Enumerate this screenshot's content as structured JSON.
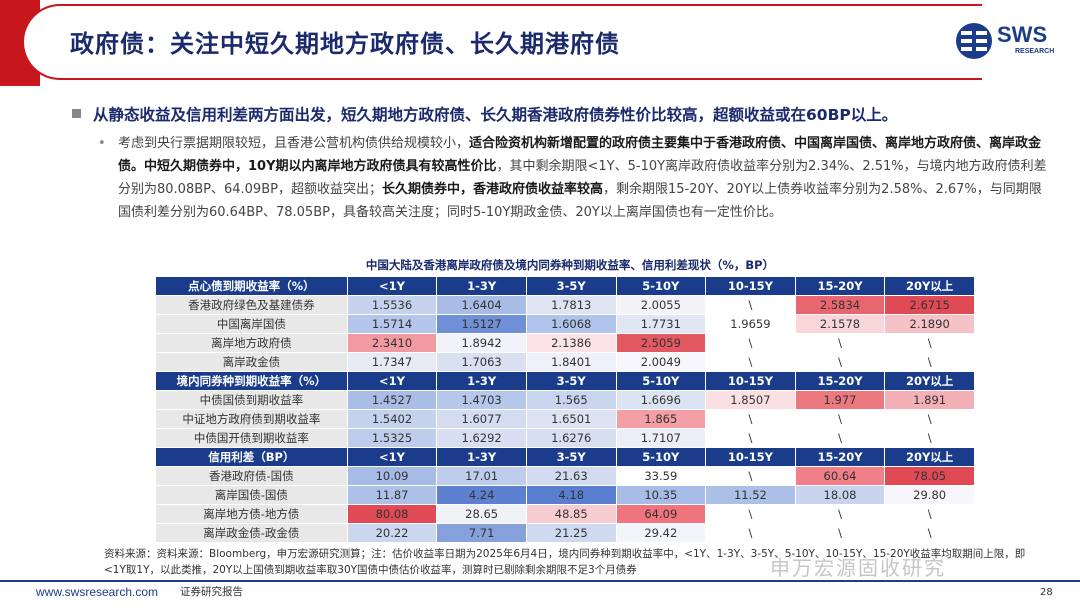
{
  "header": {
    "title": "政府债：关注中短久期地方政府债、长久期港府债",
    "logo_text": "SWS",
    "logo_sub": "RESEARCH"
  },
  "bullet_main": "从静态收益及信用利差两方面出发，短久期地方政府债、长久期香港政府债券性价比较高，超额收益或在60BP以上。",
  "paragraph": [
    {
      "text": "考虑到央行票据期限较短，且香港公营机构债供给规模较小，",
      "bold": false
    },
    {
      "text": "适合险资机构新增配置的政府债主要集中于香港政府债、中国离岸国债、离岸地方政府债、离岸政金债。中短久期债券中，10Y期以内离岸地方政府债具有较高性价比",
      "bold": true
    },
    {
      "text": "，其中剩余期限<1Y、5-10Y离岸政府债收益率分别为2.34%、2.51%，与境内地方政府债利差分别为80.08BP、64.09BP，超额收益突出；",
      "bold": false
    },
    {
      "text": "长久期债券中，香港政府债收益率较高",
      "bold": true
    },
    {
      "text": "，剩余期限15-20Y、20Y以上债券收益率分别为2.58%、2.67%，与同期限国债利差分别为60.64BP、78.05BP，具备较高关注度；同时5-10Y期政金债、20Y以上离岸国债也有一定性价比。",
      "bold": false
    }
  ],
  "table_title": "中国大陆及香港离岸政府债及境内同券种到期收益率、信用利差现状（%，BP）",
  "table": {
    "sections": [
      {
        "header": [
          "点心债到期收益率（%）",
          "<1Y",
          "1-3Y",
          "3-5Y",
          "5-10Y",
          "10-15Y",
          "15-20Y",
          "20Y以上"
        ],
        "rows": [
          {
            "label": "香港政府绿色及基建债券",
            "cells": [
              "1.5536",
              "1.6404",
              "1.7813",
              "2.0055",
              "\\",
              "2.5834",
              "2.6715"
            ],
            "colors": [
              "#c7d3ee",
              "#a8bce6",
              "#dfe4f2",
              "#f4f4f8",
              "#ffffff",
              "#e86670",
              "#e04a55"
            ]
          },
          {
            "label": "中国离岸国债",
            "cells": [
              "1.5714",
              "1.5127",
              "1.6068",
              "1.7731",
              "1.9659",
              "2.1578",
              "2.1890"
            ],
            "colors": [
              "#b4c6ea",
              "#6f8fd6",
              "#b0c3ea",
              "#e0e6f4",
              "#ffffff",
              "#f8d6da",
              "#f5c2c7"
            ]
          },
          {
            "label": "离岸地方政府债",
            "cells": [
              "2.3410",
              "1.8942",
              "2.1386",
              "2.5059"
            ],
            "colors": [
              "#f29aa2",
              "#f1f3f9",
              "#fbe3e6",
              "#e45862"
            ]
          },
          {
            "label": "离岸政金债",
            "cells": [
              "1.7347",
              "1.7063",
              "1.8401",
              "2.0049"
            ],
            "colors": [
              "#e6ebf6",
              "#d9e0f2",
              "#edf0f8",
              "#f7f7fb"
            ]
          }
        ],
        "trail": [
          "\\",
          "\\",
          "\\"
        ]
      },
      {
        "header": [
          "境内同券种到期收益率（%）",
          "<1Y",
          "1-3Y",
          "3-5Y",
          "5-10Y",
          "10-15Y",
          "15-20Y",
          "20Y以上"
        ],
        "rows": [
          {
            "label": "中债国债到期收益率",
            "cells": [
              "1.4527",
              "1.4703",
              "1.565",
              "1.6696",
              "1.8507",
              "1.977",
              "1.891"
            ],
            "colors": [
              "#a9bde7",
              "#b5c7ea",
              "#c9d5ef",
              "#dce3f3",
              "#fbe0e3",
              "#ec7880",
              "#f3b0b6"
            ]
          },
          {
            "label": "中证地方政府债到期收益率",
            "cells": [
              "1.5402",
              "1.6077",
              "1.6501",
              "1.865"
            ],
            "colors": [
              "#c5d2ee",
              "#d4dcf1",
              "#dde3f3",
              "#f49ea5"
            ]
          },
          {
            "label": "中债国开债到期收益率",
            "cells": [
              "1.5325",
              "1.6292",
              "1.6276",
              "1.7107"
            ],
            "colors": [
              "#bfcdec",
              "#d8dff2",
              "#d8dff2",
              "#eceff8"
            ]
          }
        ],
        "trail": [
          "\\",
          "\\",
          "\\"
        ]
      },
      {
        "header": [
          "信用利差（BP）",
          "<1Y",
          "1-3Y",
          "3-5Y",
          "5-10Y",
          "10-15Y",
          "15-20Y",
          "20Y以上"
        ],
        "rows": [
          {
            "label": "香港政府债-国债",
            "cells": [
              "10.09",
              "17.01",
              "21.63",
              "33.59",
              "\\",
              "60.64",
              "78.05"
            ],
            "colors": [
              "#a6bbe6",
              "#bfcdec",
              "#d2dbf0",
              "#ffffff",
              "#ffffff",
              "#f07f88",
              "#e04a55"
            ]
          },
          {
            "label": "离岸国债-国债",
            "cells": [
              "11.87",
              "4.24",
              "4.18",
              "10.35",
              "11.52",
              "18.08",
              "29.80"
            ],
            "colors": [
              "#acc0e8",
              "#5d80d0",
              "#5a7ecf",
              "#a7bce6",
              "#abbfe7",
              "#c8d4ee",
              "#f7f7fb"
            ]
          },
          {
            "label": "离岸地方债-地方债",
            "cells": [
              "80.08",
              "28.65",
              "48.85",
              "64.09"
            ],
            "colors": [
              "#e04a55",
              "#f1f2f8",
              "#f8cdd2",
              "#ef747d"
            ]
          },
          {
            "label": "离岸政金债-政金债",
            "cells": [
              "20.22",
              "7.71",
              "21.25",
              "29.42"
            ],
            "colors": [
              "#cbd6ef",
              "#86a0db",
              "#cfd9f0",
              "#f4f5fa"
            ]
          }
        ],
        "trail": [
          "\\",
          "\\",
          "\\"
        ]
      }
    ]
  },
  "source": "资料来源：资料来源：Bloomberg，申万宏源研究测算；注：估价收益率日期为2025年6月4日，境内同券种到期收益率中，<1Y、1-3Y、3-5Y、5-10Y、10-15Y、15-20Y收益率均取期间上限，即<1Y取1Y，以此类推，20Y以上国债到期收益率取30Y国债中债估价收益率，测算时已剔除剩余期限不足3个月债券",
  "footer": {
    "url": "www.swsresearch.com",
    "label": "证券研究报告",
    "watermark": "申万宏源固收研究",
    "page": "28"
  }
}
